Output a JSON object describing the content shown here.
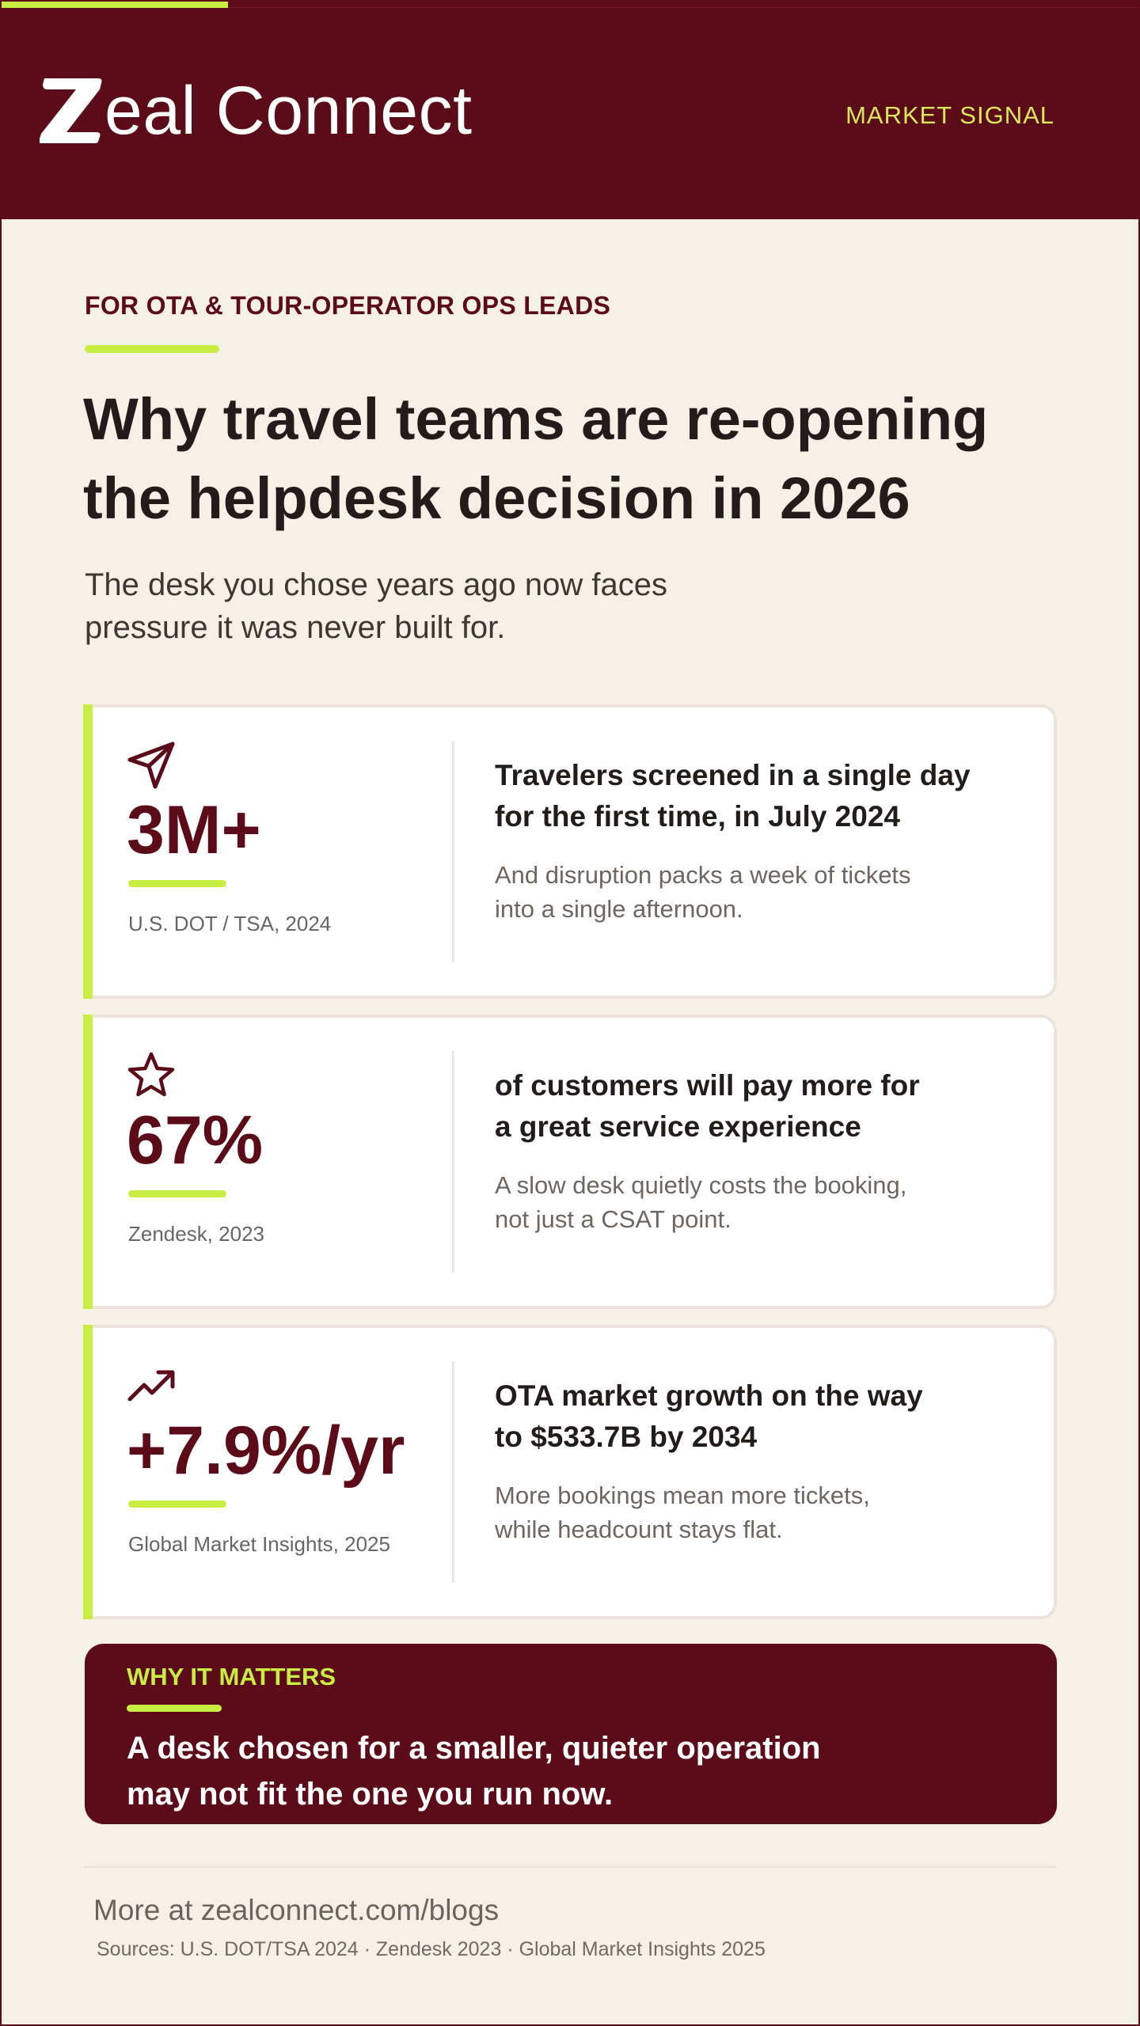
{
  "header": {
    "brand": "Zeal Connect",
    "brand_suffix": "eal Connect",
    "tag": "MARKET SIGNAL",
    "progress": 0.2
  },
  "intro": {
    "eyebrow": "FOR OTA & TOUR-OPERATOR OPS LEADS",
    "headline_line1": "Why travel teams are re-opening",
    "headline_line2": "the helpdesk decision in 2026",
    "subhead_line1": "The desk you chose years ago now faces",
    "subhead_line2": "pressure it was never built for."
  },
  "stats": [
    {
      "icon": "paper-plane-icon",
      "value": "3M+",
      "source": "U.S. DOT / TSA, 2024",
      "title_line1": "Travelers screened in a single day",
      "title_line2": "for the first time, in July 2024",
      "desc_line1": "And disruption packs a week of tickets",
      "desc_line2": "into a single afternoon."
    },
    {
      "icon": "star-icon",
      "value": "67%",
      "source": "Zendesk, 2023",
      "title_line1": "of customers will pay more for",
      "title_line2": "a great service experience",
      "desc_line1": "A slow desk quietly costs the booking,",
      "desc_line2": "not just a CSAT point."
    },
    {
      "icon": "trend-up-icon",
      "value": "+7.9%/yr",
      "source": "Global Market Insights, 2025",
      "title_line1": "OTA market growth on the way",
      "title_line2": "to $533.7B by 2034",
      "desc_line1": "More bookings mean more tickets,",
      "desc_line2": "while headcount stays flat."
    }
  ],
  "callout": {
    "label": "WHY IT MATTERS",
    "text_line1": "A desk chosen for a smaller, quieter operation",
    "text_line2": "may not fit the one you run now."
  },
  "footer": {
    "link": "More at zealconnect.com/blogs",
    "sources": "Sources: U.S. DOT/TSA 2024 · Zendesk 2023 · Global Market Insights 2025"
  },
  "colors": {
    "brand_maroon": "#5b0c18",
    "accent_lime": "#c9ee43",
    "background_cream": "#f6f1e7",
    "tag_yellow": "#d9e85a"
  }
}
